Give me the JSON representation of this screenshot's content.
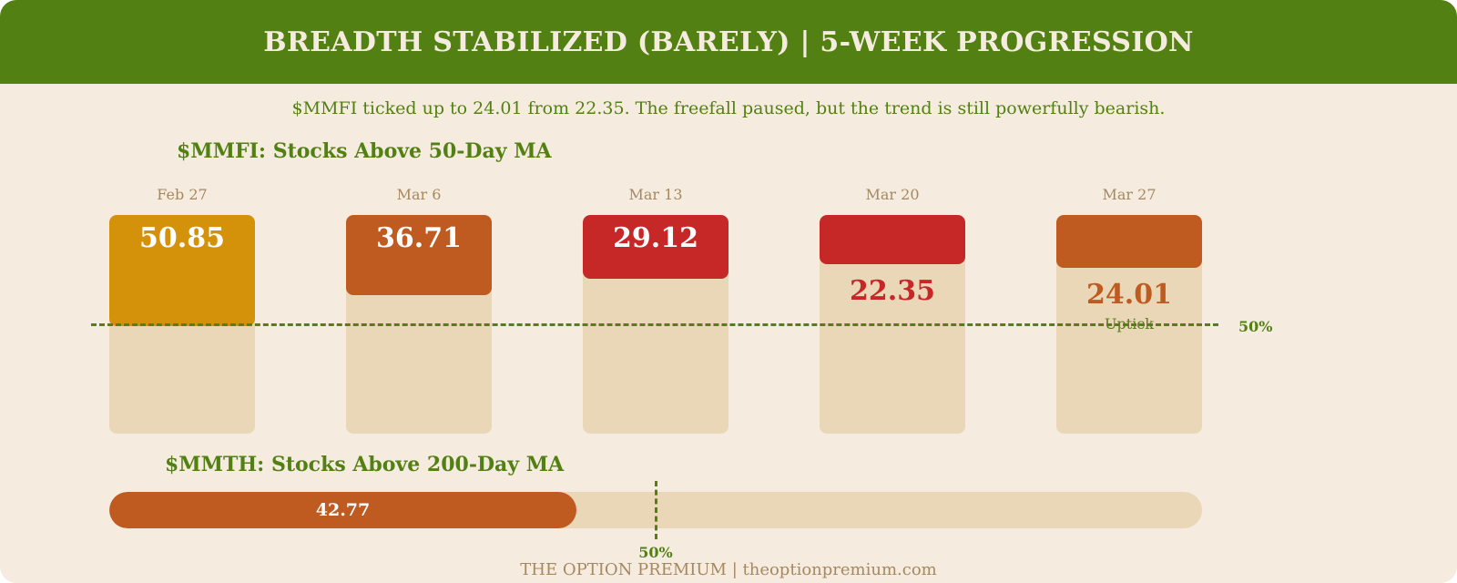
{
  "header": {
    "title": "BREADTH STABILIZED (BARELY) | 5-WEEK PROGRESSION"
  },
  "subtitle": "$MMFI ticked up to 24.01 from 22.35. The freefall paused, but the trend is still powerfully bearish.",
  "footer": "THE OPTION PREMIUM | theoptionpremium.com",
  "colors": {
    "header_bg": "#528012",
    "page_bg": "#f5ecdf",
    "track": "#e9d7b8",
    "gold": "#d4920b",
    "orange": "#bf5b20",
    "red": "#c62828",
    "green": "#528012",
    "muted": "#a68860"
  },
  "chart_data": [
    {
      "type": "bar",
      "title": "$MMFI: Stocks Above 50-Day MA",
      "categories": [
        "Feb 27",
        "Mar 6",
        "Mar 13",
        "Mar 20",
        "Mar 27"
      ],
      "values": [
        50.85,
        36.71,
        29.12,
        22.35,
        24.01
      ],
      "labels": [
        "50.85",
        "36.71",
        "29.12",
        "22.35",
        "24.01"
      ],
      "colors": [
        "#d4920b",
        "#bf5b20",
        "#c62828",
        "#c62828",
        "#bf5b20"
      ],
      "annotations": [
        "",
        "",
        "",
        "",
        "Uptick"
      ],
      "reference_line": {
        "value": 50,
        "label": "50%"
      },
      "ylim": [
        0,
        100
      ]
    },
    {
      "type": "bar",
      "title": "$MMTH: Stocks Above 200-Day MA",
      "orientation": "horizontal",
      "values": [
        42.77
      ],
      "labels": [
        "42.77"
      ],
      "colors": [
        "#bf5b20"
      ],
      "reference_line": {
        "value": 50,
        "label": "50%"
      },
      "xlim": [
        0,
        100
      ]
    }
  ]
}
